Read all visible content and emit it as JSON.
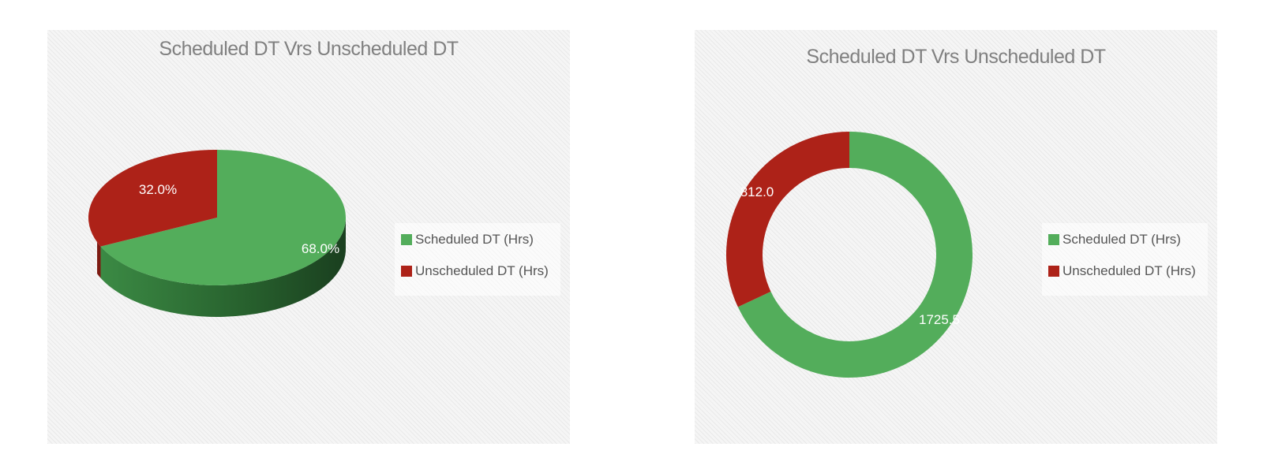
{
  "chart_data": [
    {
      "type": "pie",
      "title": "Scheduled DT Vrs Unscheduled DT",
      "categories": [
        "Scheduled DT (Hrs)",
        "Unscheduled DT (Hrs)"
      ],
      "values": [
        68.0,
        32.0
      ],
      "data_labels": [
        "68.0%",
        "32.0%"
      ],
      "colors": [
        "#53ad5b",
        "#ad2218"
      ],
      "style": "3d-pie",
      "legend": "right"
    },
    {
      "type": "pie",
      "style": "doughnut",
      "title": "Scheduled DT Vrs Unscheduled DT",
      "categories": [
        "Scheduled DT (Hrs)",
        "Unscheduled DT (Hrs)"
      ],
      "values": [
        1725.5,
        812.0
      ],
      "data_labels": [
        "1725.5",
        "812.0"
      ],
      "colors": [
        "#53ad5b",
        "#ad2218"
      ],
      "legend": "right"
    }
  ]
}
